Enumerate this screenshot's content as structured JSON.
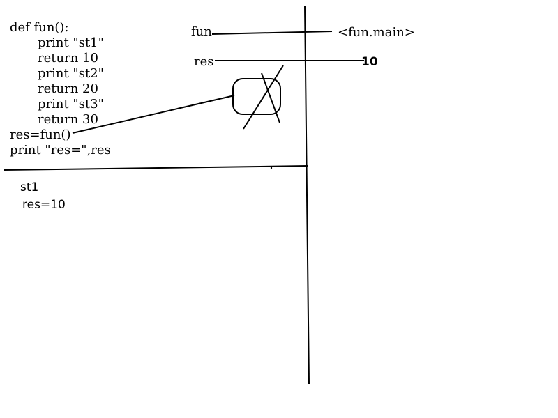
{
  "code": {
    "lines": [
      "def fun():",
      "print \"st1\"",
      "return 10",
      "print \"st2\"",
      "return 20",
      "print \"st3\"",
      "return 30",
      "res=fun()",
      "print \"res=\",res"
    ]
  },
  "output": {
    "lines": [
      "st1",
      "res=10"
    ]
  },
  "frames": {
    "fun_label": "fun",
    "fun_value": "<fun.main>",
    "res_label": "res",
    "res_value": "10"
  }
}
